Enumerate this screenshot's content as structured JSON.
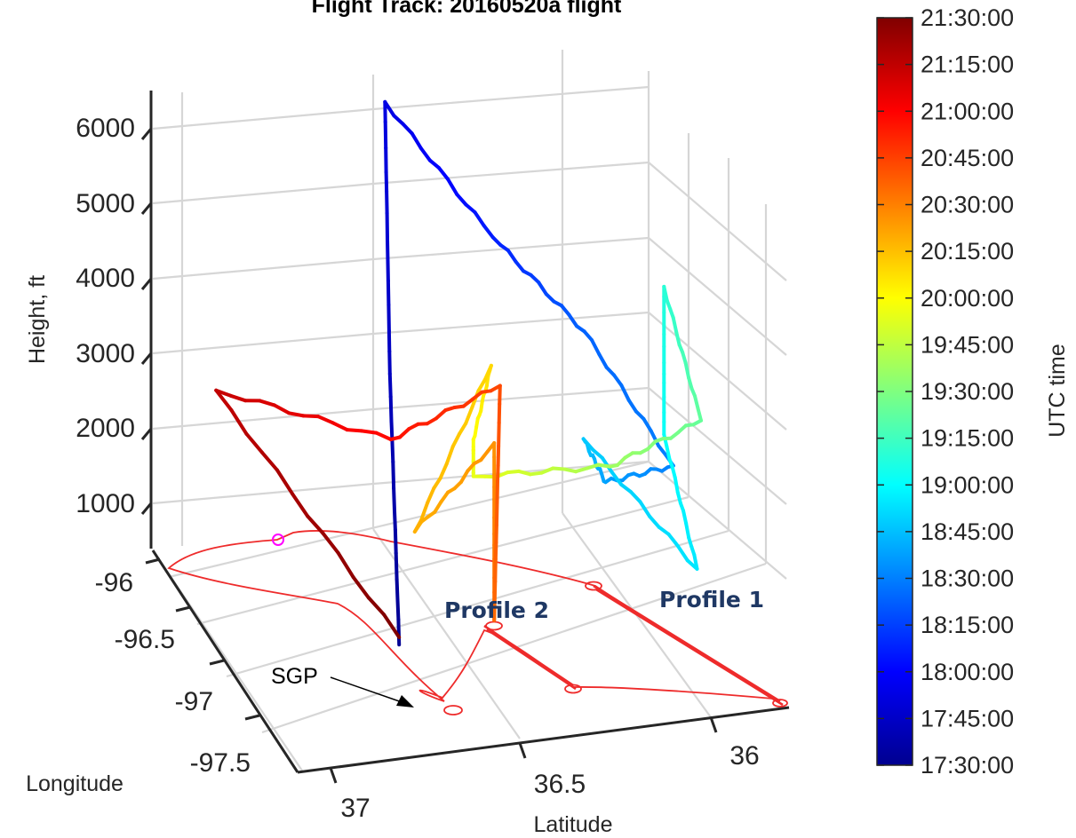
{
  "chart_data": {
    "type": "line",
    "subtype": "3d-line-colored-by-time",
    "title": "Flight Track: 20160520a flight",
    "xlabel": "Latitude",
    "ylabel": "Longitude",
    "zlabel": "Height, ft",
    "x_ticks": [
      "37",
      "36.5",
      "36"
    ],
    "y_ticks": [
      "-96",
      "-96.5",
      "-97",
      "-97.5"
    ],
    "z_ticks": [
      "1000",
      "2000",
      "3000",
      "4000",
      "5000",
      "6000"
    ],
    "xlim": [
      35.8,
      37.0
    ],
    "ylim": [
      -97.6,
      -95.9
    ],
    "zlim": [
      400,
      6600
    ],
    "grid": true,
    "colorbar": {
      "label": "UTC time",
      "ticks": [
        "21:30:00",
        "21:15:00",
        "21:00:00",
        "20:45:00",
        "20:30:00",
        "20:15:00",
        "20:00:00",
        "19:45:00",
        "19:30:00",
        "19:15:00",
        "19:00:00",
        "18:45:00",
        "18:30:00",
        "18:15:00",
        "18:00:00",
        "17:45:00",
        "17:30:00"
      ],
      "colormap": "jet",
      "range": [
        "17:30:00",
        "21:30:00"
      ]
    },
    "annotations": {
      "profile1": "Profile 1",
      "profile2": "Profile 2",
      "sgp": "SGP"
    },
    "track": [
      {
        "t": 0.0,
        "lat": 36.61,
        "lon": -96.9,
        "height": 500
      },
      {
        "t": 0.05,
        "lat": 36.55,
        "lon": -96.5,
        "height": 3400
      },
      {
        "t": 0.09,
        "lat": 36.5,
        "lon": -96.2,
        "height": 6500
      },
      {
        "t": 0.15,
        "lat": 36.28,
        "lon": -96.4,
        "height": 4800
      },
      {
        "t": 0.22,
        "lat": 36.1,
        "lon": -96.6,
        "height": 3700
      },
      {
        "t": 0.25,
        "lat": 35.93,
        "lon": -96.82,
        "height": 2100
      },
      {
        "t": 0.28,
        "lat": 36.1,
        "lon": -96.85,
        "height": 2100
      },
      {
        "t": 0.32,
        "lat": 36.16,
        "lon": -96.88,
        "height": 2800
      },
      {
        "t": 0.35,
        "lat": 35.92,
        "lon": -97.05,
        "height": 1100
      },
      {
        "t": 0.38,
        "lat": 36.0,
        "lon": -97.05,
        "height": 3000
      },
      {
        "t": 0.41,
        "lat": 36.0,
        "lon": -97.05,
        "height": 5000
      },
      {
        "t": 0.47,
        "lat": 35.9,
        "lon": -97.0,
        "height": 3000
      },
      {
        "t": 0.53,
        "lat": 36.1,
        "lon": -96.9,
        "height": 2400
      },
      {
        "t": 0.6,
        "lat": 36.42,
        "lon": -96.85,
        "height": 2500
      },
      {
        "t": 0.62,
        "lat": 36.42,
        "lon": -96.85,
        "height": 3000
      },
      {
        "t": 0.66,
        "lat": 36.35,
        "lon": -96.72,
        "height": 3700
      },
      {
        "t": 0.7,
        "lat": 36.5,
        "lon": -96.55,
        "height": 1300
      },
      {
        "t": 0.73,
        "lat": 36.38,
        "lon": -96.9,
        "height": 3000
      },
      {
        "t": 0.77,
        "lat": 36.38,
        "lon": -96.9,
        "height": 600
      },
      {
        "t": 0.8,
        "lat": 36.37,
        "lon": -96.92,
        "height": 3800
      },
      {
        "t": 0.86,
        "lat": 36.62,
        "lon": -96.85,
        "height": 3200
      },
      {
        "t": 0.93,
        "lat": 36.95,
        "lon": -96.4,
        "height": 3400
      },
      {
        "t": 1.0,
        "lat": 36.61,
        "lon": -96.9,
        "height": 600
      }
    ]
  }
}
